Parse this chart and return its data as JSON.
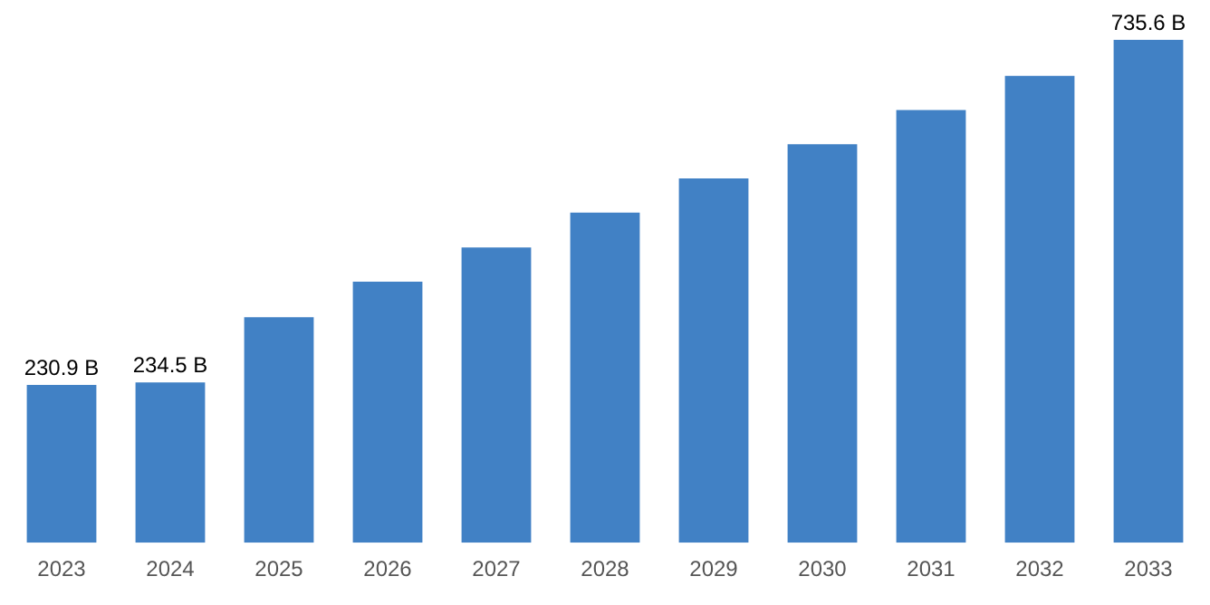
{
  "chart_data": {
    "type": "bar",
    "categories": [
      "2023",
      "2024",
      "2025",
      "2026",
      "2027",
      "2028",
      "2029",
      "2030",
      "2031",
      "2032",
      "2033"
    ],
    "values": [
      230.9,
      234.5,
      330,
      382,
      432,
      483,
      533,
      583,
      633,
      683,
      735.6
    ],
    "value_labels": [
      "230.9 B",
      "234.5 B",
      null,
      null,
      null,
      null,
      null,
      null,
      null,
      null,
      "735.6 B"
    ],
    "color": "#4181c5",
    "grid": false,
    "legend": false
  }
}
